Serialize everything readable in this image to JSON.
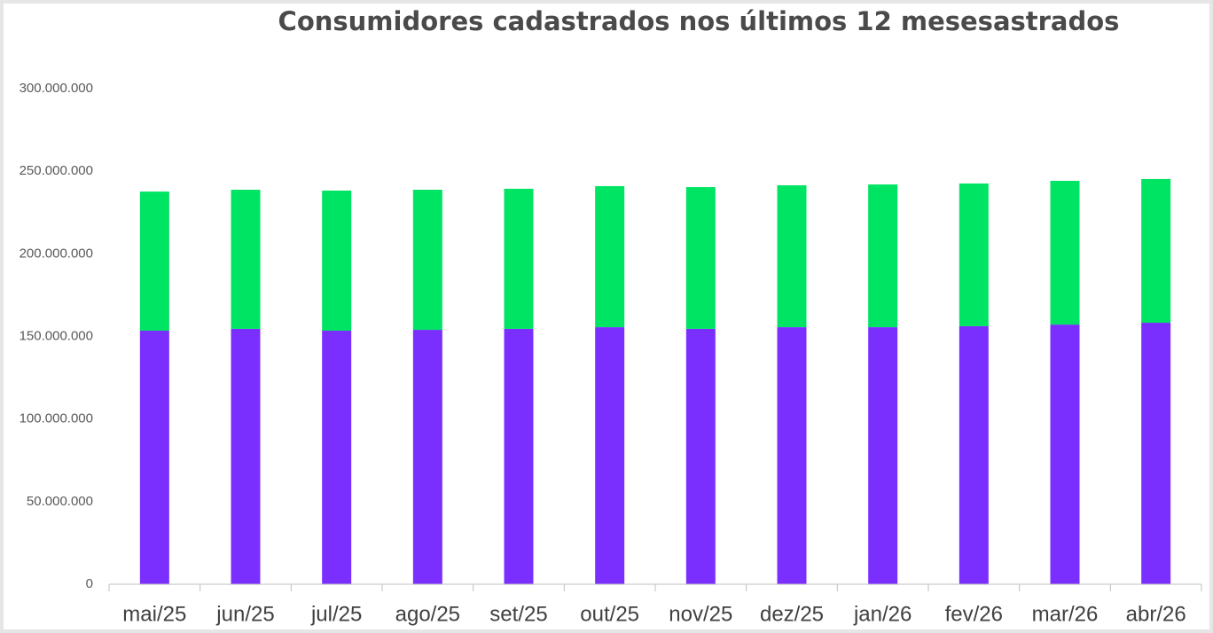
{
  "chart_data": {
    "type": "stacked_bar",
    "title": "Consumidores cadastrados nos últimos 12 mesesastrados",
    "categories": [
      "mai/25",
      "jun/25",
      "jul/25",
      "ago/25",
      "set/25",
      "out/25",
      "nov/25",
      "dez/25",
      "jan/26",
      "fev/26",
      "mar/26",
      "abr/26"
    ],
    "series": [
      {
        "color": "#7b2fff",
        "values": [
          153500000,
          154600000,
          153500000,
          154000000,
          154600000,
          155600000,
          154600000,
          155600000,
          155600000,
          156200000,
          157200000,
          158300000
        ]
      },
      {
        "color": "#00e463",
        "values": [
          84200000,
          84200000,
          84800000,
          84800000,
          84800000,
          85400000,
          85800000,
          85900000,
          86400000,
          86400000,
          87000000,
          87000000
        ]
      }
    ],
    "ylim": [
      0,
      300000000
    ],
    "yticks": [
      0,
      {
        "value": 50000000,
        "label": "50.000.000"
      },
      {
        "value": 100000000,
        "label": "100.000.000"
      },
      {
        "value": 150000000,
        "label": "150.000.000"
      },
      {
        "value": 200000000,
        "label": "200.000.000"
      },
      {
        "value": 250000000,
        "label": "250.000.000"
      },
      {
        "value": 300000000,
        "label": "300.000.000"
      }
    ],
    "grid": false
  }
}
